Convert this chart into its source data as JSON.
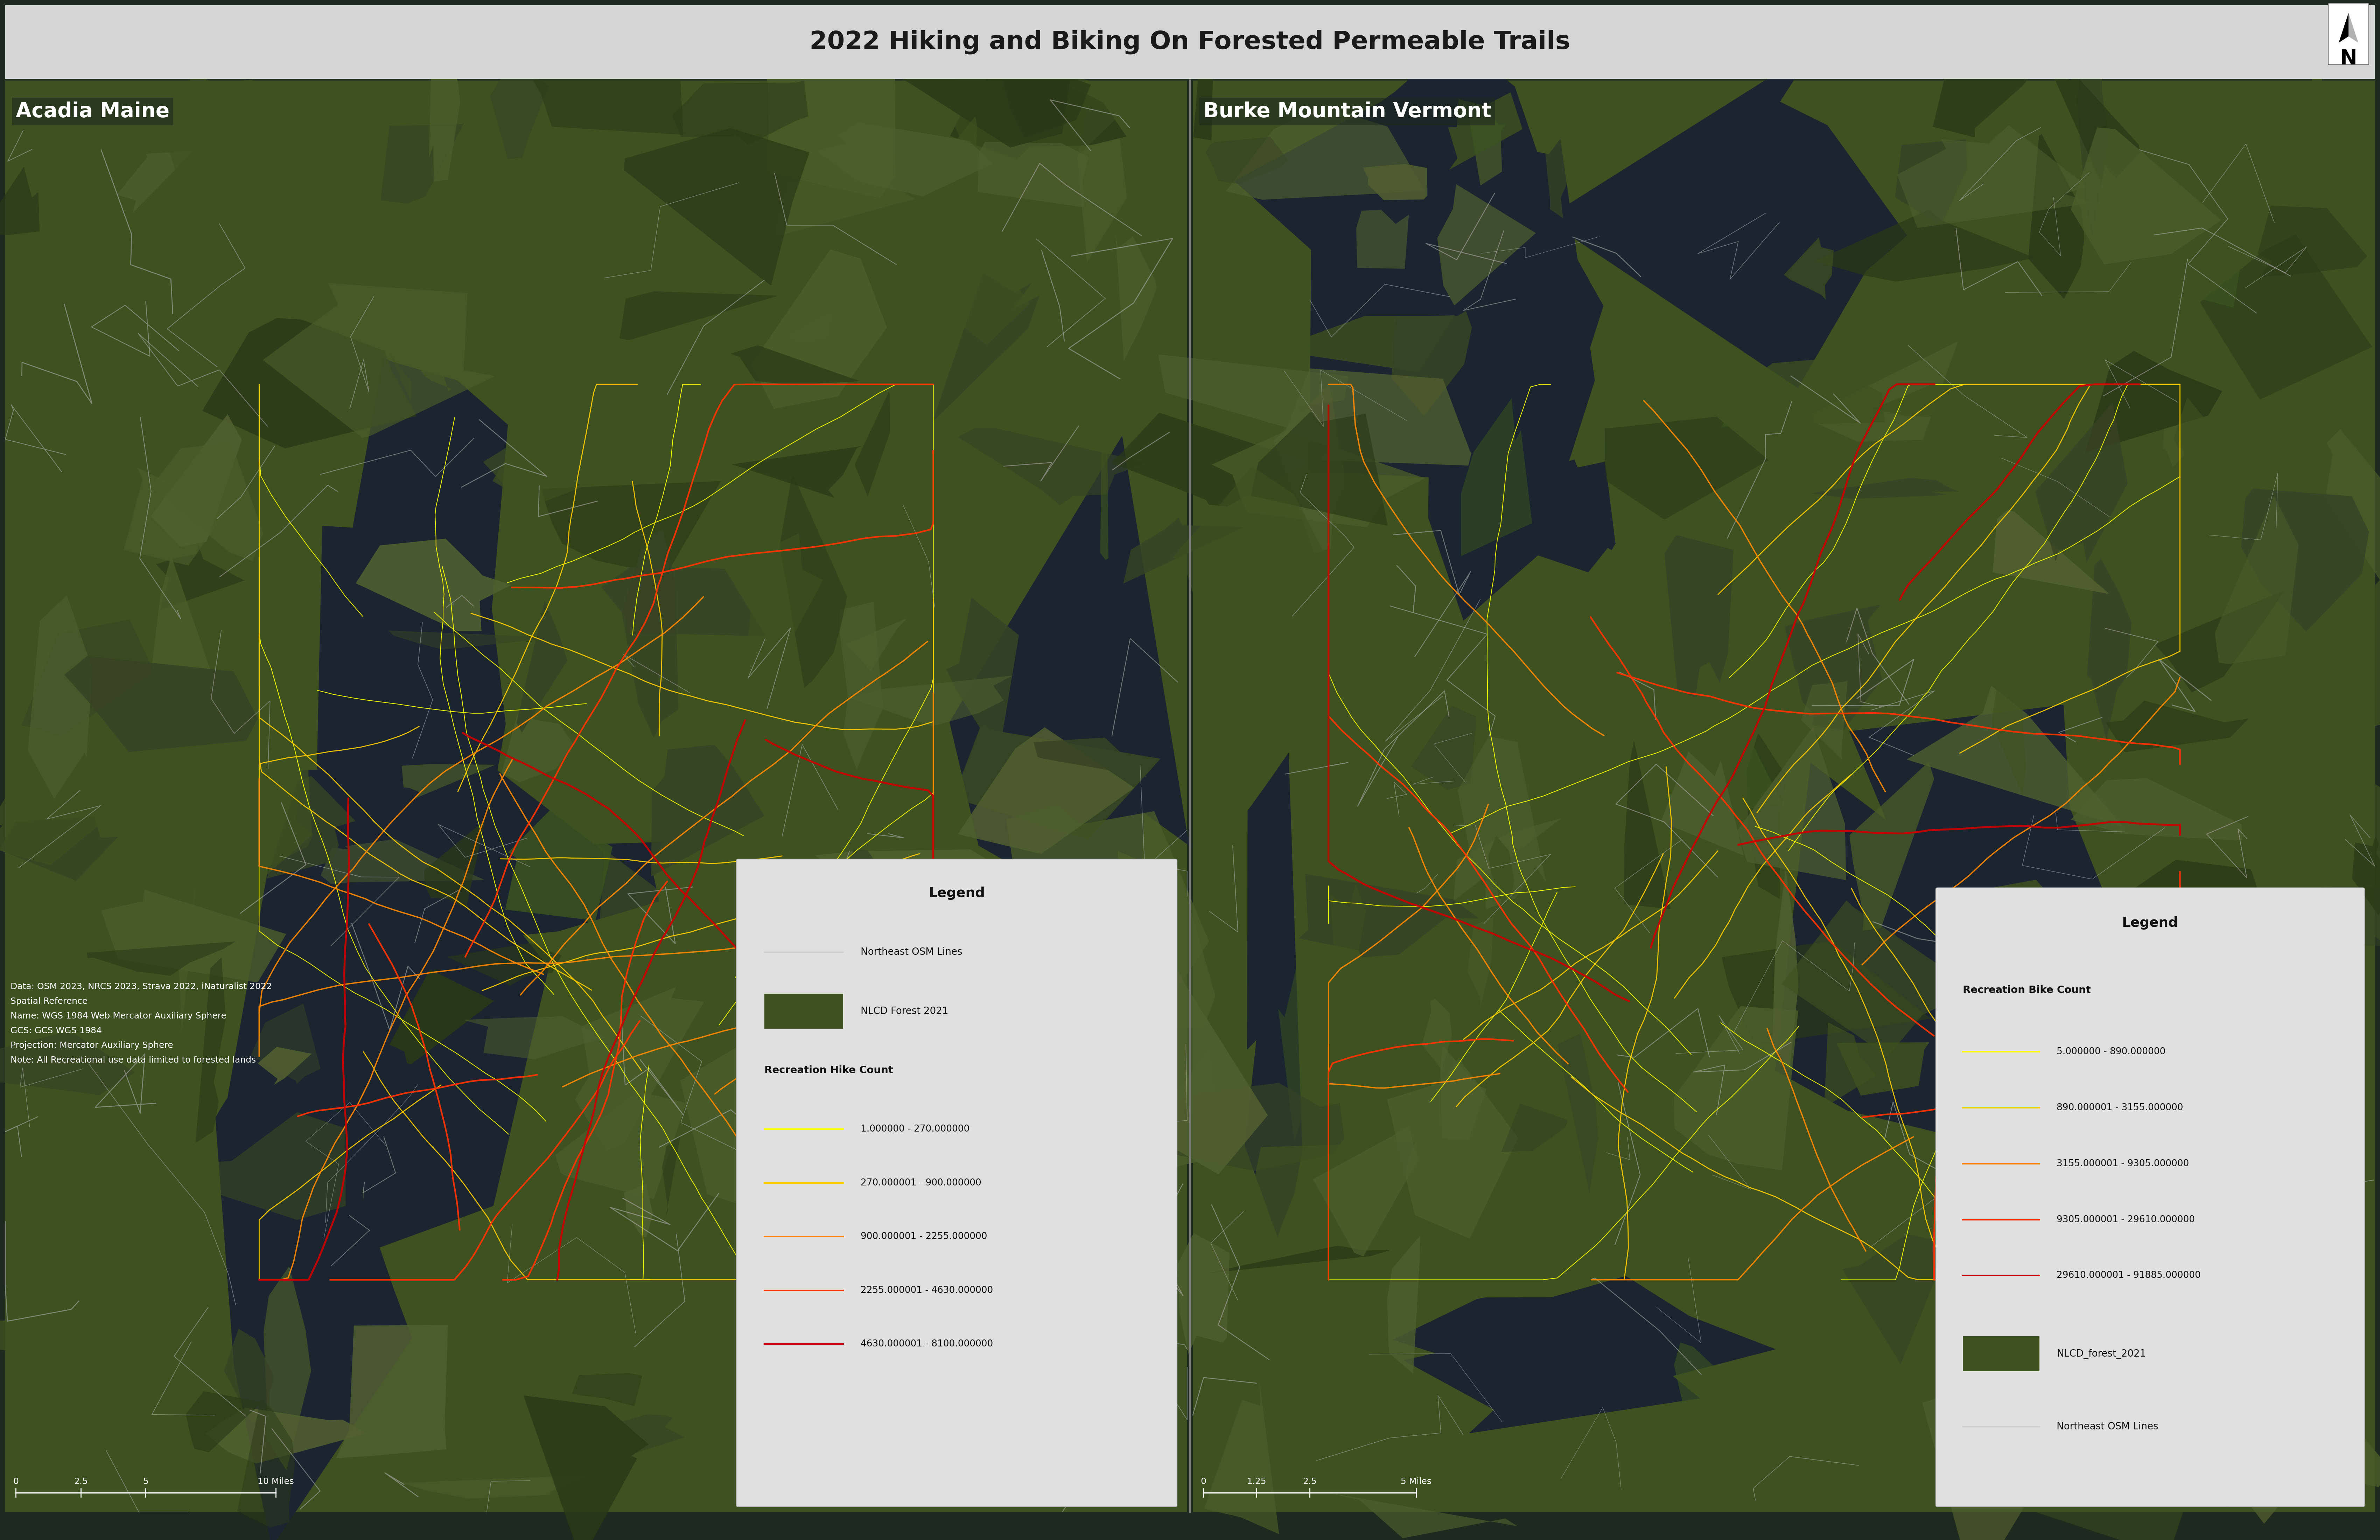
{
  "title": "2022 Hiking and Biking On Forested Permeable Trails",
  "title_fontsize": 52,
  "title_bg_color": "#d4d4d4",
  "title_text_color": "#1a1a1a",
  "outer_bg": "#1e2a1e",
  "forest_color_light": "#4a5e2a",
  "forest_color_dark": "#364425",
  "forest_color_mid": "#3d5220",
  "water_color": "#1a2530",
  "water_dark": "#111d28",
  "road_color": "#b8b8b8",
  "urban_color": "#555555",
  "left_label": "Acadia Maine",
  "right_label": "Burke Mountain Vermont",
  "label_fontsize": 42,
  "label_text_color": "#ffffff",
  "hike_colors": [
    "#ffff00",
    "#ffcc00",
    "#ff8800",
    "#ff3300",
    "#cc0000"
  ],
  "hike_labels": [
    "1.000000 - 270.000000",
    "270.000001 - 900.000000",
    "900.000001 - 2255.000000",
    "2255.000001 - 4630.000000",
    "4630.000001 - 8100.000000"
  ],
  "bike_colors": [
    "#ffff00",
    "#ffcc00",
    "#ff8800",
    "#ff3300",
    "#cc0000"
  ],
  "bike_labels": [
    "5.000000 - 890.000000",
    "890.000001 - 3155.000000",
    "3155.000001 - 9305.000000",
    "9305.000001 - 29610.000000",
    "29610.000001 - 91885.000000"
  ],
  "legend_bg": "#e0e0e0",
  "legend_fontsize": 22,
  "legend_title_fontsize": 28,
  "footnote_lines": [
    "Data: OSM 2023, NRCS 2023, Strava 2022, iNaturalist 2022",
    "Spatial Reference",
    "Name: WGS 1984 Web Mercator Auxiliary Sphere",
    "GCS: GCS WGS 1984",
    "Projection: Mercator Auxiliary Sphere",
    "Note: All Recreational use data limited to forested lands"
  ],
  "footnote_fontsize": 18,
  "scalebar_fontsize": 18
}
